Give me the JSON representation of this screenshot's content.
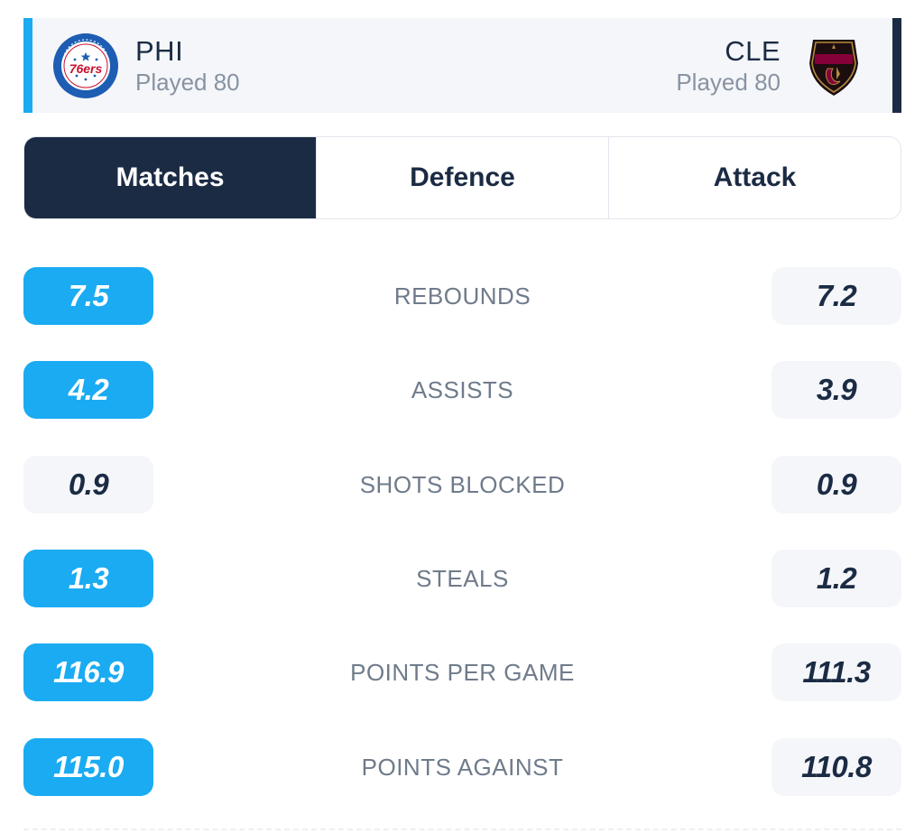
{
  "header": {
    "home": {
      "abbr": "PHI",
      "played": "Played 80",
      "logo_icon": "76ers-logo-icon",
      "color": "#1aabf2"
    },
    "away": {
      "abbr": "CLE",
      "played": "Played 80",
      "logo_icon": "cavaliers-logo-icon",
      "color": "#1b2b44"
    }
  },
  "tabs": [
    {
      "label": "Matches",
      "active": true
    },
    {
      "label": "Defence",
      "active": false
    },
    {
      "label": "Attack",
      "active": false
    }
  ],
  "stats": [
    {
      "label": "REBOUNDS",
      "home": "7.5",
      "away": "7.2",
      "leader": "home"
    },
    {
      "label": "ASSISTS",
      "home": "4.2",
      "away": "3.9",
      "leader": "home"
    },
    {
      "label": "SHOTS BLOCKED",
      "home": "0.9",
      "away": "0.9",
      "leader": "none"
    },
    {
      "label": "STEALS",
      "home": "1.3",
      "away": "1.2",
      "leader": "home"
    },
    {
      "label": "POINTS PER GAME",
      "home": "116.9",
      "away": "111.3",
      "leader": "home"
    },
    {
      "label": "POINTS AGAINST",
      "home": "115.0",
      "away": "110.8",
      "leader": "home"
    }
  ],
  "colors": {
    "accent": "#1aabf2",
    "navy": "#1b2b44",
    "muted_text": "#6f7b8b",
    "pill_neutral": "#f4f6f9"
  }
}
